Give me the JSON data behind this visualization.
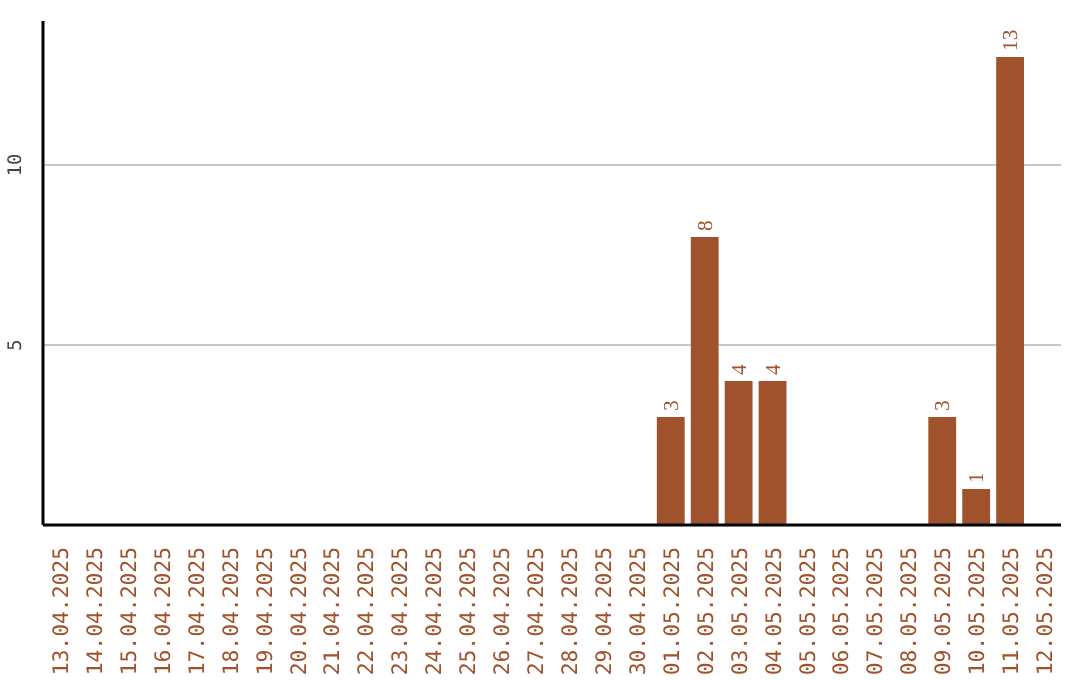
{
  "chart_data": {
    "type": "bar",
    "categories": [
      "13.04.2025",
      "14.04.2025",
      "15.04.2025",
      "16.04.2025",
      "17.04.2025",
      "18.04.2025",
      "19.04.2025",
      "20.04.2025",
      "21.04.2025",
      "22.04.2025",
      "23.04.2025",
      "24.04.2025",
      "25.04.2025",
      "26.04.2025",
      "27.04.2025",
      "28.04.2025",
      "29.04.2025",
      "30.04.2025",
      "01.05.2025",
      "02.05.2025",
      "03.05.2025",
      "04.05.2025",
      "05.05.2025",
      "06.05.2025",
      "07.05.2025",
      "08.05.2025",
      "09.05.2025",
      "10.05.2025",
      "11.05.2025",
      "12.05.2025"
    ],
    "values": [
      0,
      0,
      0,
      0,
      0,
      0,
      0,
      0,
      0,
      0,
      0,
      0,
      0,
      0,
      0,
      0,
      0,
      0,
      3,
      8,
      4,
      4,
      0,
      0,
      0,
      0,
      3,
      1,
      13,
      0
    ],
    "value_labels": [
      null,
      null,
      null,
      null,
      null,
      null,
      null,
      null,
      null,
      null,
      null,
      null,
      null,
      null,
      null,
      null,
      null,
      null,
      "3",
      "8",
      "4",
      "4",
      null,
      null,
      null,
      null,
      "3",
      "1",
      "13",
      null
    ],
    "color": "#a0522d",
    "ylim": [
      0,
      14
    ],
    "yticks": [
      5,
      10
    ],
    "grid": "y"
  }
}
